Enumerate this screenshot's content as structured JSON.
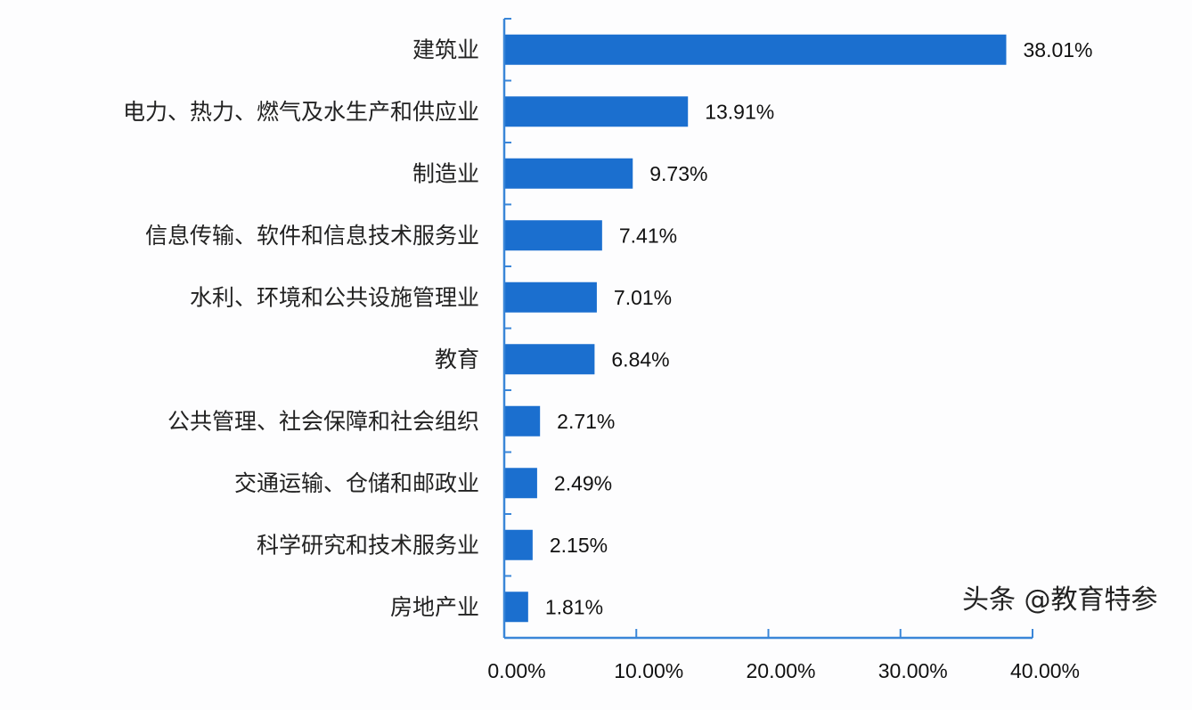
{
  "chart_data": {
    "type": "bar",
    "orientation": "horizontal",
    "categories": [
      "建筑业",
      "电力、热力、燃气及水生产和供应业",
      "制造业",
      "信息传输、软件和信息技术服务业",
      "水利、环境和公共设施管理业",
      "教育",
      "公共管理、社会保障和社会组织",
      "交通运输、仓储和邮政业",
      "科学研究和技术服务业",
      "房地产业"
    ],
    "values": [
      38.01,
      13.91,
      9.73,
      7.41,
      7.01,
      6.84,
      2.71,
      2.49,
      2.15,
      1.81
    ],
    "value_labels": [
      "38.01%",
      "13.91%",
      "9.73%",
      "7.41%",
      "7.01%",
      "6.84%",
      "2.71%",
      "2.49%",
      "2.15%",
      "1.81%"
    ],
    "xlim": [
      0,
      40
    ],
    "xticks": [
      0,
      10,
      20,
      30,
      40
    ],
    "xtick_labels": [
      "0.00%",
      "10.00%",
      "20.00%",
      "30.00%",
      "40.00%"
    ],
    "grid": false,
    "bar_color": "#1b6fcf",
    "axis_color": "#3a86d8"
  },
  "watermark": "头条 @教育特参"
}
